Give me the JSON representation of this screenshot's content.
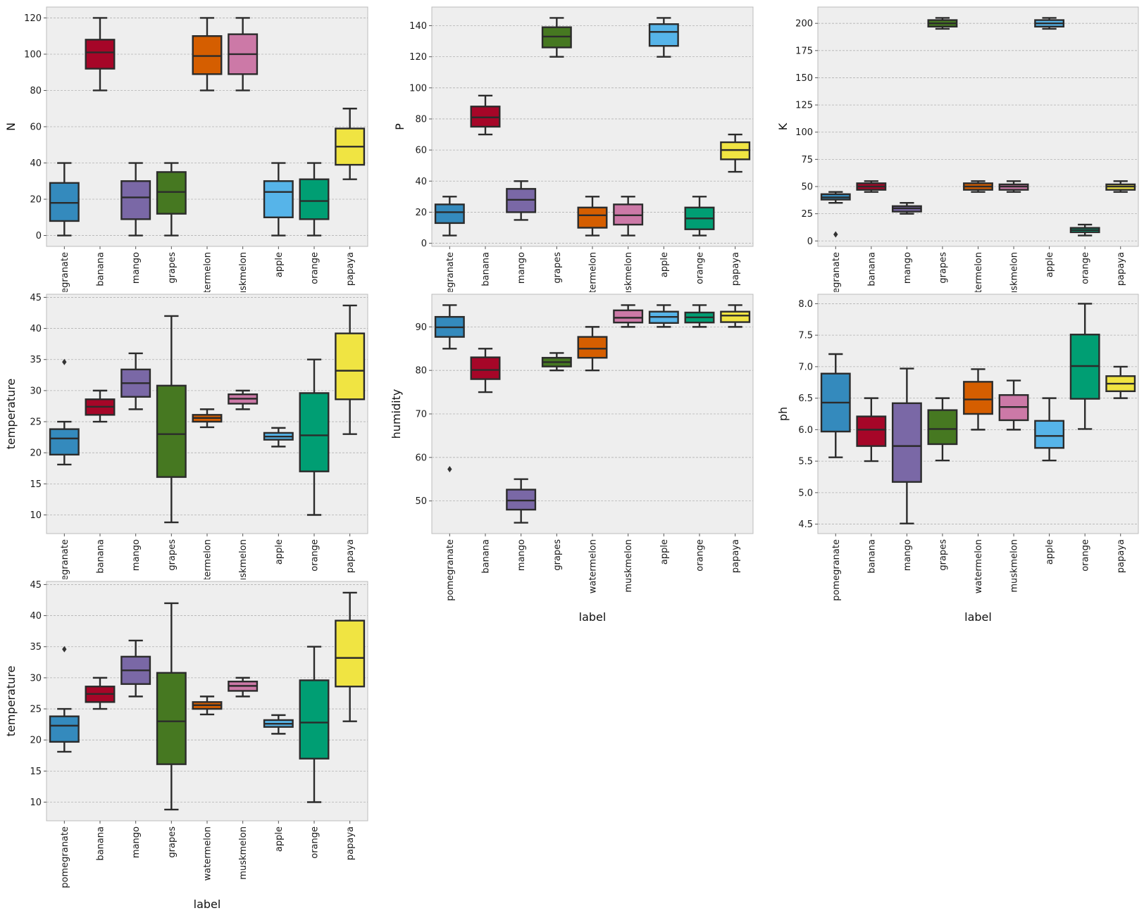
{
  "palette": {
    "pomegranate": "#348ABD",
    "banana": "#A60628",
    "mango": "#7A68A6",
    "grapes": "#467821",
    "watermelon": "#D55E00",
    "muskmelon": "#CC79A7",
    "apple": "#56B4E9",
    "orange": "#009E73",
    "papaya": "#F0E442"
  },
  "chart_data": [
    {
      "type": "box",
      "xlabel": "",
      "ylabel": "N",
      "ylim": [
        -6,
        126
      ],
      "yticks": [
        0,
        20,
        40,
        60,
        80,
        100,
        120
      ],
      "grid": true,
      "categories": [
        "pomegranate",
        "banana",
        "mango",
        "grapes",
        "watermelon",
        "muskmelon",
        "apple",
        "orange",
        "papaya"
      ],
      "boxes": [
        {
          "label": "pomegranate",
          "whisker_low": 0,
          "q1": 8,
          "median": 18,
          "q3": 29,
          "whisker_high": 40,
          "outliers": []
        },
        {
          "label": "banana",
          "whisker_low": 80,
          "q1": 92,
          "median": 101,
          "q3": 108,
          "whisker_high": 120,
          "outliers": []
        },
        {
          "label": "mango",
          "whisker_low": 0,
          "q1": 9,
          "median": 21,
          "q3": 30,
          "whisker_high": 40,
          "outliers": []
        },
        {
          "label": "grapes",
          "whisker_low": 0,
          "q1": 12,
          "median": 24,
          "q3": 35,
          "whisker_high": 40,
          "outliers": []
        },
        {
          "label": "watermelon",
          "whisker_low": 80,
          "q1": 89,
          "median": 99,
          "q3": 110,
          "whisker_high": 120,
          "outliers": []
        },
        {
          "label": "muskmelon",
          "whisker_low": 80,
          "q1": 89,
          "median": 100,
          "q3": 111,
          "whisker_high": 120,
          "outliers": []
        },
        {
          "label": "apple",
          "whisker_low": 0,
          "q1": 10,
          "median": 24,
          "q3": 30,
          "whisker_high": 40,
          "outliers": []
        },
        {
          "label": "orange",
          "whisker_low": 0,
          "q1": 9,
          "median": 19,
          "q3": 31,
          "whisker_high": 40,
          "outliers": []
        },
        {
          "label": "papaya",
          "whisker_low": 31,
          "q1": 39,
          "median": 49,
          "q3": 59,
          "whisker_high": 70,
          "outliers": []
        }
      ]
    },
    {
      "type": "box",
      "xlabel": "",
      "ylabel": "P",
      "ylim": [
        -2,
        152
      ],
      "yticks": [
        0,
        20,
        40,
        60,
        80,
        100,
        120,
        140
      ],
      "grid": true,
      "categories": [
        "pomegranate",
        "banana",
        "mango",
        "grapes",
        "watermelon",
        "muskmelon",
        "apple",
        "orange",
        "papaya"
      ],
      "boxes": [
        {
          "label": "pomegranate",
          "whisker_low": 5,
          "q1": 13,
          "median": 20,
          "q3": 25,
          "whisker_high": 30,
          "outliers": []
        },
        {
          "label": "banana",
          "whisker_low": 70,
          "q1": 75,
          "median": 81,
          "q3": 88,
          "whisker_high": 95,
          "outliers": []
        },
        {
          "label": "mango",
          "whisker_low": 15,
          "q1": 20,
          "median": 28,
          "q3": 35,
          "whisker_high": 40,
          "outliers": []
        },
        {
          "label": "grapes",
          "whisker_low": 120,
          "q1": 126,
          "median": 133,
          "q3": 139,
          "whisker_high": 145,
          "outliers": []
        },
        {
          "label": "watermelon",
          "whisker_low": 5,
          "q1": 10,
          "median": 18,
          "q3": 23,
          "whisker_high": 30,
          "outliers": []
        },
        {
          "label": "muskmelon",
          "whisker_low": 5,
          "q1": 12,
          "median": 18,
          "q3": 25,
          "whisker_high": 30,
          "outliers": []
        },
        {
          "label": "apple",
          "whisker_low": 120,
          "q1": 127,
          "median": 136,
          "q3": 141,
          "whisker_high": 145,
          "outliers": []
        },
        {
          "label": "orange",
          "whisker_low": 5,
          "q1": 9,
          "median": 16,
          "q3": 23,
          "whisker_high": 30,
          "outliers": []
        },
        {
          "label": "papaya",
          "whisker_low": 46,
          "q1": 54,
          "median": 60,
          "q3": 65,
          "whisker_high": 70,
          "outliers": []
        }
      ]
    },
    {
      "type": "box",
      "xlabel": "",
      "ylabel": "K",
      "ylim": [
        -5,
        215
      ],
      "yticks": [
        0,
        25,
        50,
        75,
        100,
        125,
        150,
        175,
        200
      ],
      "grid": true,
      "categories": [
        "pomegranate",
        "banana",
        "mango",
        "grapes",
        "watermelon",
        "muskmelon",
        "apple",
        "orange",
        "papaya"
      ],
      "boxes": [
        {
          "label": "pomegranate",
          "whisker_low": 35,
          "q1": 38,
          "median": 40,
          "q3": 43,
          "whisker_high": 45,
          "outliers": [
            6
          ]
        },
        {
          "label": "banana",
          "whisker_low": 45,
          "q1": 47,
          "median": 50,
          "q3": 53,
          "whisker_high": 55,
          "outliers": []
        },
        {
          "label": "mango",
          "whisker_low": 25,
          "q1": 27,
          "median": 30,
          "q3": 32,
          "whisker_high": 35,
          "outliers": []
        },
        {
          "label": "grapes",
          "whisker_low": 195,
          "q1": 197,
          "median": 200,
          "q3": 203,
          "whisker_high": 205,
          "outliers": []
        },
        {
          "label": "watermelon",
          "whisker_low": 45,
          "q1": 47,
          "median": 50,
          "q3": 53,
          "whisker_high": 55,
          "outliers": []
        },
        {
          "label": "muskmelon",
          "whisker_low": 45,
          "q1": 47,
          "median": 50,
          "q3": 52,
          "whisker_high": 55,
          "outliers": []
        },
        {
          "label": "apple",
          "whisker_low": 195,
          "q1": 197,
          "median": 200,
          "q3": 203,
          "whisker_high": 205,
          "outliers": []
        },
        {
          "label": "orange",
          "whisker_low": 5,
          "q1": 8,
          "median": 10,
          "q3": 12,
          "whisker_high": 15,
          "outliers": []
        },
        {
          "label": "papaya",
          "whisker_low": 45,
          "q1": 47,
          "median": 50,
          "q3": 52,
          "whisker_high": 55,
          "outliers": []
        }
      ]
    },
    {
      "type": "box",
      "xlabel": "",
      "ylabel": "temperature",
      "ylim": [
        7,
        45.5
      ],
      "yticks": [
        10,
        15,
        20,
        25,
        30,
        35,
        40,
        45
      ],
      "grid": true,
      "categories": [
        "pomegranate",
        "banana",
        "mango",
        "grapes",
        "watermelon",
        "muskmelon",
        "apple",
        "orange",
        "papaya"
      ],
      "boxes": [
        {
          "label": "pomegranate",
          "whisker_low": 18.1,
          "q1": 19.7,
          "median": 22.3,
          "q3": 23.8,
          "whisker_high": 25,
          "outliers": [
            34.6
          ]
        },
        {
          "label": "banana",
          "whisker_low": 25,
          "q1": 26.1,
          "median": 27.4,
          "q3": 28.6,
          "whisker_high": 30,
          "outliers": []
        },
        {
          "label": "mango",
          "whisker_low": 27,
          "q1": 29,
          "median": 31.2,
          "q3": 33.4,
          "whisker_high": 36,
          "outliers": []
        },
        {
          "label": "grapes",
          "whisker_low": 8.8,
          "q1": 16.1,
          "median": 23,
          "q3": 30.8,
          "whisker_high": 42,
          "outliers": []
        },
        {
          "label": "watermelon",
          "whisker_low": 24.1,
          "q1": 25,
          "median": 25.6,
          "q3": 26.1,
          "whisker_high": 27,
          "outliers": []
        },
        {
          "label": "muskmelon",
          "whisker_low": 27,
          "q1": 27.9,
          "median": 28.7,
          "q3": 29.4,
          "whisker_high": 30,
          "outliers": []
        },
        {
          "label": "apple",
          "whisker_low": 21,
          "q1": 22.1,
          "median": 22.6,
          "q3": 23.2,
          "whisker_high": 24,
          "outliers": []
        },
        {
          "label": "orange",
          "whisker_low": 10,
          "q1": 17,
          "median": 22.8,
          "q3": 29.6,
          "whisker_high": 35,
          "outliers": []
        },
        {
          "label": "papaya",
          "whisker_low": 23,
          "q1": 28.6,
          "median": 33.2,
          "q3": 39.2,
          "whisker_high": 43.7,
          "outliers": []
        }
      ]
    },
    {
      "type": "box",
      "xlabel": "label",
      "ylabel": "humidity",
      "ylim": [
        42.5,
        97.5
      ],
      "yticks": [
        50,
        60,
        70,
        80,
        90
      ],
      "grid": true,
      "categories": [
        "pomegranate",
        "banana",
        "mango",
        "grapes",
        "watermelon",
        "muskmelon",
        "apple",
        "orange",
        "papaya"
      ],
      "boxes": [
        {
          "label": "pomegranate",
          "whisker_low": 85,
          "q1": 87.7,
          "median": 89.9,
          "q3": 92.3,
          "whisker_high": 95,
          "outliers": [
            57.3
          ]
        },
        {
          "label": "banana",
          "whisker_low": 75,
          "q1": 78,
          "median": 80.1,
          "q3": 83,
          "whisker_high": 85,
          "outliers": []
        },
        {
          "label": "mango",
          "whisker_low": 45,
          "q1": 48,
          "median": 50.1,
          "q3": 52.6,
          "whisker_high": 55,
          "outliers": []
        },
        {
          "label": "grapes",
          "whisker_low": 80,
          "q1": 80.9,
          "median": 81.9,
          "q3": 82.9,
          "whisker_high": 84,
          "outliers": []
        },
        {
          "label": "watermelon",
          "whisker_low": 80,
          "q1": 82.9,
          "median": 85,
          "q3": 87.7,
          "whisker_high": 90,
          "outliers": []
        },
        {
          "label": "muskmelon",
          "whisker_low": 90,
          "q1": 91,
          "median": 92.1,
          "q3": 93.8,
          "whisker_high": 95,
          "outliers": []
        },
        {
          "label": "apple",
          "whisker_low": 90,
          "q1": 90.9,
          "median": 92.3,
          "q3": 93.5,
          "whisker_high": 95,
          "outliers": []
        },
        {
          "label": "orange",
          "whisker_low": 90,
          "q1": 91,
          "median": 92.2,
          "q3": 93.3,
          "whisker_high": 95,
          "outliers": []
        },
        {
          "label": "papaya",
          "whisker_low": 90,
          "q1": 91.1,
          "median": 92.6,
          "q3": 93.5,
          "whisker_high": 95,
          "outliers": []
        }
      ]
    },
    {
      "type": "box",
      "xlabel": "label",
      "ylabel": "ph",
      "ylim": [
        4.35,
        8.15
      ],
      "yticks": [
        4.5,
        5.0,
        5.5,
        6.0,
        6.5,
        7.0,
        7.5,
        8.0
      ],
      "grid": true,
      "categories": [
        "pomegranate",
        "banana",
        "mango",
        "grapes",
        "watermelon",
        "muskmelon",
        "apple",
        "orange",
        "papaya"
      ],
      "boxes": [
        {
          "label": "pomegranate",
          "whisker_low": 5.56,
          "q1": 5.97,
          "median": 6.43,
          "q3": 6.89,
          "whisker_high": 7.2,
          "outliers": []
        },
        {
          "label": "banana",
          "whisker_low": 5.5,
          "q1": 5.74,
          "median": 6,
          "q3": 6.21,
          "whisker_high": 6.5,
          "outliers": []
        },
        {
          "label": "mango",
          "whisker_low": 4.51,
          "q1": 5.17,
          "median": 5.74,
          "q3": 6.42,
          "whisker_high": 6.97,
          "outliers": []
        },
        {
          "label": "grapes",
          "whisker_low": 5.51,
          "q1": 5.77,
          "median": 6.01,
          "q3": 6.31,
          "whisker_high": 6.5,
          "outliers": []
        },
        {
          "label": "watermelon",
          "whisker_low": 6,
          "q1": 6.25,
          "median": 6.48,
          "q3": 6.76,
          "whisker_high": 6.96,
          "outliers": []
        },
        {
          "label": "muskmelon",
          "whisker_low": 6,
          "q1": 6.15,
          "median": 6.36,
          "q3": 6.55,
          "whisker_high": 6.78,
          "outliers": []
        },
        {
          "label": "apple",
          "whisker_low": 5.51,
          "q1": 5.71,
          "median": 5.9,
          "q3": 6.14,
          "whisker_high": 6.5,
          "outliers": []
        },
        {
          "label": "orange",
          "whisker_low": 6.01,
          "q1": 6.49,
          "median": 7.01,
          "q3": 7.51,
          "whisker_high": 8,
          "outliers": []
        },
        {
          "label": "papaya",
          "whisker_low": 6.5,
          "q1": 6.61,
          "median": 6.73,
          "q3": 6.85,
          "whisker_high": 7,
          "outliers": []
        }
      ]
    },
    {
      "type": "box",
      "xlabel": "label",
      "ylabel": "temperature",
      "ylim": [
        7,
        45.5
      ],
      "yticks": [
        10,
        15,
        20,
        25,
        30,
        35,
        40,
        45
      ],
      "grid": true,
      "categories": [
        "pomegranate",
        "banana",
        "mango",
        "grapes",
        "watermelon",
        "muskmelon",
        "apple",
        "orange",
        "papaya"
      ],
      "boxes": [
        {
          "label": "pomegranate",
          "whisker_low": 18.1,
          "q1": 19.7,
          "median": 22.3,
          "q3": 23.8,
          "whisker_high": 25,
          "outliers": [
            34.6
          ]
        },
        {
          "label": "banana",
          "whisker_low": 25,
          "q1": 26.1,
          "median": 27.4,
          "q3": 28.6,
          "whisker_high": 30,
          "outliers": []
        },
        {
          "label": "mango",
          "whisker_low": 27,
          "q1": 29,
          "median": 31.2,
          "q3": 33.4,
          "whisker_high": 36,
          "outliers": []
        },
        {
          "label": "grapes",
          "whisker_low": 8.8,
          "q1": 16.1,
          "median": 23,
          "q3": 30.8,
          "whisker_high": 42,
          "outliers": []
        },
        {
          "label": "watermelon",
          "whisker_low": 24.1,
          "q1": 25,
          "median": 25.6,
          "q3": 26.1,
          "whisker_high": 27,
          "outliers": []
        },
        {
          "label": "muskmelon",
          "whisker_low": 27,
          "q1": 27.9,
          "median": 28.7,
          "q3": 29.4,
          "whisker_high": 30,
          "outliers": []
        },
        {
          "label": "apple",
          "whisker_low": 21,
          "q1": 22.1,
          "median": 22.6,
          "q3": 23.2,
          "whisker_high": 24,
          "outliers": []
        },
        {
          "label": "orange",
          "whisker_low": 10,
          "q1": 17,
          "median": 22.8,
          "q3": 29.6,
          "whisker_high": 35,
          "outliers": []
        },
        {
          "label": "papaya",
          "whisker_low": 23,
          "q1": 28.6,
          "median": 33.2,
          "q3": 39.2,
          "whisker_high": 43.7,
          "outliers": []
        }
      ]
    }
  ]
}
